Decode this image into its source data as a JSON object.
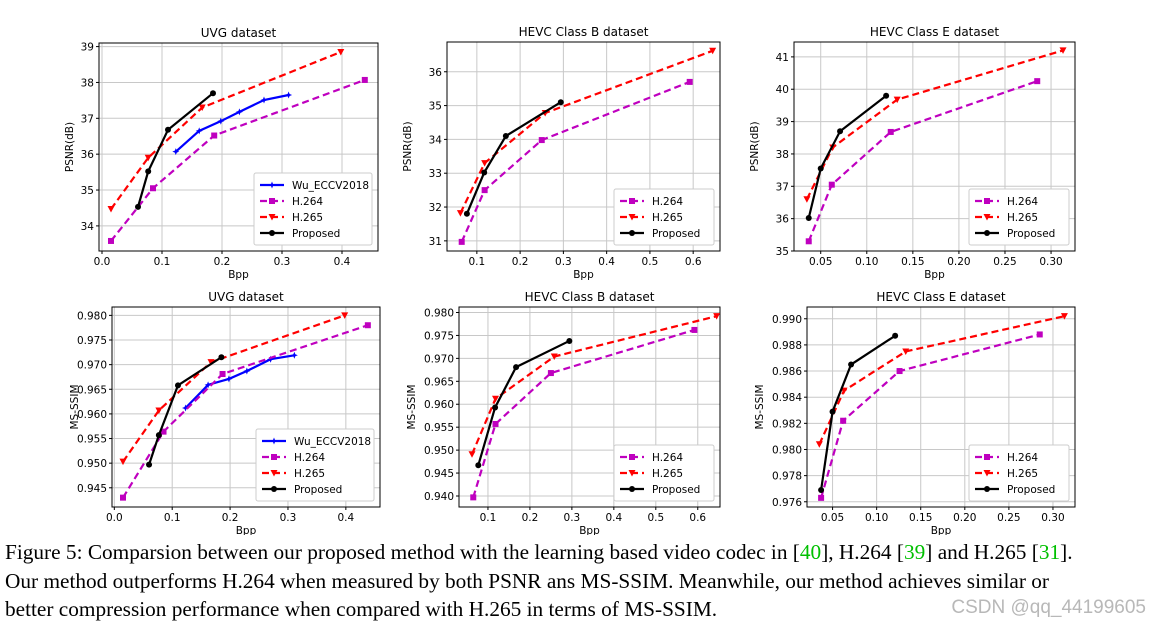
{
  "legend_labels": {
    "wu": "Wu_ECCV2018",
    "h264": "H.264",
    "h265": "H.265",
    "proposed": "Proposed"
  },
  "series_colors": {
    "wu": "#0000ff",
    "h264": "#bf00bf",
    "h265": "#ff0000",
    "proposed": "#000000"
  },
  "chart_data": [
    {
      "type": "line",
      "title": "UVG dataset",
      "xlabel": "Bpp",
      "ylabel": "PSNR(dB)",
      "xlim": [
        -0.005,
        0.46
      ],
      "ylim": [
        33.3,
        39.1
      ],
      "xticks": [
        0.0,
        0.1,
        0.2,
        0.3,
        0.4
      ],
      "xtick_labels": [
        "0.0",
        "0.1",
        "0.2",
        "0.3",
        "0.4"
      ],
      "yticks": [
        34,
        35,
        36,
        37,
        38,
        39
      ],
      "ytick_labels": [
        "34",
        "35",
        "36",
        "37",
        "38",
        "39"
      ],
      "grid": true,
      "legend": "bottom-right",
      "series": [
        {
          "name": "Wu_ECCV2018",
          "key": "wu",
          "x": [
            0.123,
            0.162,
            0.198,
            0.229,
            0.27,
            0.311
          ],
          "y": [
            36.07,
            36.65,
            36.92,
            37.18,
            37.51,
            37.65
          ]
        },
        {
          "name": "H.264",
          "key": "h264",
          "x": [
            0.015,
            0.085,
            0.187,
            0.438
          ],
          "y": [
            33.58,
            35.05,
            36.52,
            38.07
          ]
        },
        {
          "name": "H.265",
          "key": "h265",
          "x": [
            0.015,
            0.077,
            0.167,
            0.398
          ],
          "y": [
            34.47,
            35.9,
            37.3,
            38.85
          ]
        },
        {
          "name": "Proposed",
          "key": "proposed",
          "x": [
            0.06,
            0.077,
            0.11,
            0.185
          ],
          "y": [
            34.53,
            35.52,
            36.68,
            37.7
          ]
        }
      ]
    },
    {
      "type": "line",
      "title": "HEVC Class B dataset",
      "xlabel": "Bpp",
      "ylabel": "PSNR(dB)",
      "xlim": [
        0.031,
        0.662
      ],
      "ylim": [
        30.7,
        36.88
      ],
      "xticks": [
        0.1,
        0.2,
        0.3,
        0.4,
        0.5,
        0.6
      ],
      "xtick_labels": [
        "0.1",
        "0.2",
        "0.3",
        "0.4",
        "0.5",
        "0.6"
      ],
      "yticks": [
        31,
        32,
        33,
        34,
        35,
        36
      ],
      "ytick_labels": [
        "31",
        "32",
        "33",
        "34",
        "35",
        "36"
      ],
      "grid": true,
      "legend": "bottom-right",
      "series": [
        {
          "name": "H.264",
          "key": "h264",
          "x": [
            0.065,
            0.118,
            0.25,
            0.592
          ],
          "y": [
            30.97,
            32.5,
            33.98,
            35.7
          ]
        },
        {
          "name": "H.265",
          "key": "h265",
          "x": [
            0.062,
            0.118,
            0.258,
            0.645
          ],
          "y": [
            31.82,
            33.3,
            34.78,
            36.62
          ]
        },
        {
          "name": "Proposed",
          "key": "proposed",
          "x": [
            0.077,
            0.117,
            0.167,
            0.294
          ],
          "y": [
            31.8,
            33.02,
            34.1,
            35.1
          ]
        }
      ]
    },
    {
      "type": "line",
      "title": "HEVC Class E dataset",
      "xlabel": "Bpp",
      "ylabel": "PSNR(dB)",
      "xlim": [
        0.021,
        0.326
      ],
      "ylim": [
        35.0,
        41.46
      ],
      "xticks": [
        0.05,
        0.1,
        0.15,
        0.2,
        0.25,
        0.3
      ],
      "xtick_labels": [
        "0.05",
        "0.10",
        "0.15",
        "0.20",
        "0.25",
        "0.30"
      ],
      "yticks": [
        35,
        36,
        37,
        38,
        39,
        40,
        41
      ],
      "ytick_labels": [
        "35",
        "36",
        "37",
        "38",
        "39",
        "40",
        "41"
      ],
      "grid": true,
      "legend": "bottom-right",
      "series": [
        {
          "name": "H.264",
          "key": "h264",
          "x": [
            0.037,
            0.062,
            0.126,
            0.285
          ],
          "y": [
            35.3,
            37.05,
            38.68,
            40.25
          ]
        },
        {
          "name": "H.265",
          "key": "h265",
          "x": [
            0.035,
            0.063,
            0.133,
            0.313
          ],
          "y": [
            36.6,
            38.2,
            39.68,
            41.2
          ]
        },
        {
          "name": "Proposed",
          "key": "proposed",
          "x": [
            0.037,
            0.05,
            0.071,
            0.121
          ],
          "y": [
            36.02,
            37.55,
            38.7,
            39.8
          ]
        }
      ]
    },
    {
      "type": "line",
      "title": "UVG dataset",
      "xlabel": "Bpp",
      "ylabel": "MS-SSIM",
      "xlim": [
        -0.004,
        0.459
      ],
      "ylim": [
        0.9411,
        0.9817
      ],
      "xticks": [
        0.0,
        0.1,
        0.2,
        0.3,
        0.4
      ],
      "xtick_labels": [
        "0.0",
        "0.1",
        "0.2",
        "0.3",
        "0.4"
      ],
      "yticks": [
        0.945,
        0.95,
        0.955,
        0.96,
        0.965,
        0.97,
        0.975,
        0.98
      ],
      "ytick_labels": [
        "0.945",
        "0.950",
        "0.955",
        "0.960",
        "0.965",
        "0.970",
        "0.975",
        "0.980"
      ],
      "grid": true,
      "legend": "bottom-right",
      "series": [
        {
          "name": "Wu_ECCV2018",
          "key": "wu",
          "x": [
            0.123,
            0.162,
            0.198,
            0.229,
            0.27,
            0.311
          ],
          "y": [
            0.9612,
            0.9659,
            0.9671,
            0.9687,
            0.9711,
            0.9719
          ]
        },
        {
          "name": "H.264",
          "key": "h264",
          "x": [
            0.015,
            0.085,
            0.187,
            0.438
          ],
          "y": [
            0.943,
            0.9564,
            0.9681,
            0.978
          ]
        },
        {
          "name": "H.265",
          "key": "h265",
          "x": [
            0.015,
            0.077,
            0.167,
            0.398
          ],
          "y": [
            0.9503,
            0.9607,
            0.9705,
            0.98
          ]
        },
        {
          "name": "Proposed",
          "key": "proposed",
          "x": [
            0.06,
            0.077,
            0.11,
            0.185
          ],
          "y": [
            0.9497,
            0.9557,
            0.9658,
            0.9715
          ]
        }
      ]
    },
    {
      "type": "line",
      "title": "HEVC Class B dataset",
      "xlabel": "Bpp",
      "ylabel": "MS-SSIM",
      "xlim": [
        0.031,
        0.653
      ],
      "ylim": [
        0.9376,
        0.9812
      ],
      "xticks": [
        0.1,
        0.2,
        0.3,
        0.4,
        0.5,
        0.6
      ],
      "xtick_labels": [
        "0.1",
        "0.2",
        "0.3",
        "0.4",
        "0.5",
        "0.6"
      ],
      "yticks": [
        0.94,
        0.945,
        0.95,
        0.955,
        0.96,
        0.965,
        0.97,
        0.975,
        0.98
      ],
      "ytick_labels": [
        "0.940",
        "0.945",
        "0.950",
        "0.955",
        "0.960",
        "0.965",
        "0.970",
        "0.975",
        "0.980"
      ],
      "grid": true,
      "legend": "bottom-right",
      "series": [
        {
          "name": "H.264",
          "key": "h264",
          "x": [
            0.065,
            0.118,
            0.25,
            0.592
          ],
          "y": [
            0.9397,
            0.9557,
            0.9668,
            0.9762
          ]
        },
        {
          "name": "H.265",
          "key": "h265",
          "x": [
            0.062,
            0.118,
            0.258,
            0.645
          ],
          "y": [
            0.9491,
            0.9612,
            0.9704,
            0.9792
          ]
        },
        {
          "name": "Proposed",
          "key": "proposed",
          "x": [
            0.077,
            0.117,
            0.167,
            0.294
          ],
          "y": [
            0.9467,
            0.9593,
            0.9681,
            0.9738
          ]
        }
      ]
    },
    {
      "type": "line",
      "title": "HEVC Class E dataset",
      "xlabel": "Bpp",
      "ylabel": "MS-SSIM",
      "xlim": [
        0.021,
        0.325
      ],
      "ylim": [
        0.9756,
        0.9909
      ],
      "xticks": [
        0.05,
        0.1,
        0.15,
        0.2,
        0.25,
        0.3
      ],
      "xtick_labels": [
        "0.05",
        "0.10",
        "0.15",
        "0.20",
        "0.25",
        "0.30"
      ],
      "yticks": [
        0.976,
        0.978,
        0.98,
        0.982,
        0.984,
        0.986,
        0.988,
        0.99
      ],
      "ytick_labels": [
        "0.976",
        "0.978",
        "0.980",
        "0.982",
        "0.984",
        "0.986",
        "0.988",
        "0.990"
      ],
      "grid": true,
      "legend": "bottom-right",
      "series": [
        {
          "name": "H.264",
          "key": "h264",
          "x": [
            0.037,
            0.062,
            0.126,
            0.285
          ],
          "y": [
            0.9763,
            0.9822,
            0.986,
            0.9888
          ]
        },
        {
          "name": "H.265",
          "key": "h265",
          "x": [
            0.035,
            0.063,
            0.133,
            0.313
          ],
          "y": [
            0.9804,
            0.9845,
            0.9875,
            0.9902
          ]
        },
        {
          "name": "Proposed",
          "key": "proposed",
          "x": [
            0.037,
            0.05,
            0.071,
            0.121
          ],
          "y": [
            0.9769,
            0.9829,
            0.9865,
            0.9887
          ]
        }
      ]
    }
  ],
  "caption": {
    "l1_a": "Figure 5: Comparsion between our proposed method with the learning based video codec in [",
    "cite1": "40",
    "l1_b": "], H.264 [",
    "cite2": "39",
    "l1_c": "] and H.265 [",
    "cite3": "31",
    "l1_d": "].",
    "line2": "Our method outperforms H.264 when measured by both PSNR ans MS-SSIM. Meanwhile, our method achieves similar or",
    "line3": "better compression performance when compared with H.265 in terms of MS-SSIM."
  },
  "watermark": "CSDN @qq_44199605"
}
